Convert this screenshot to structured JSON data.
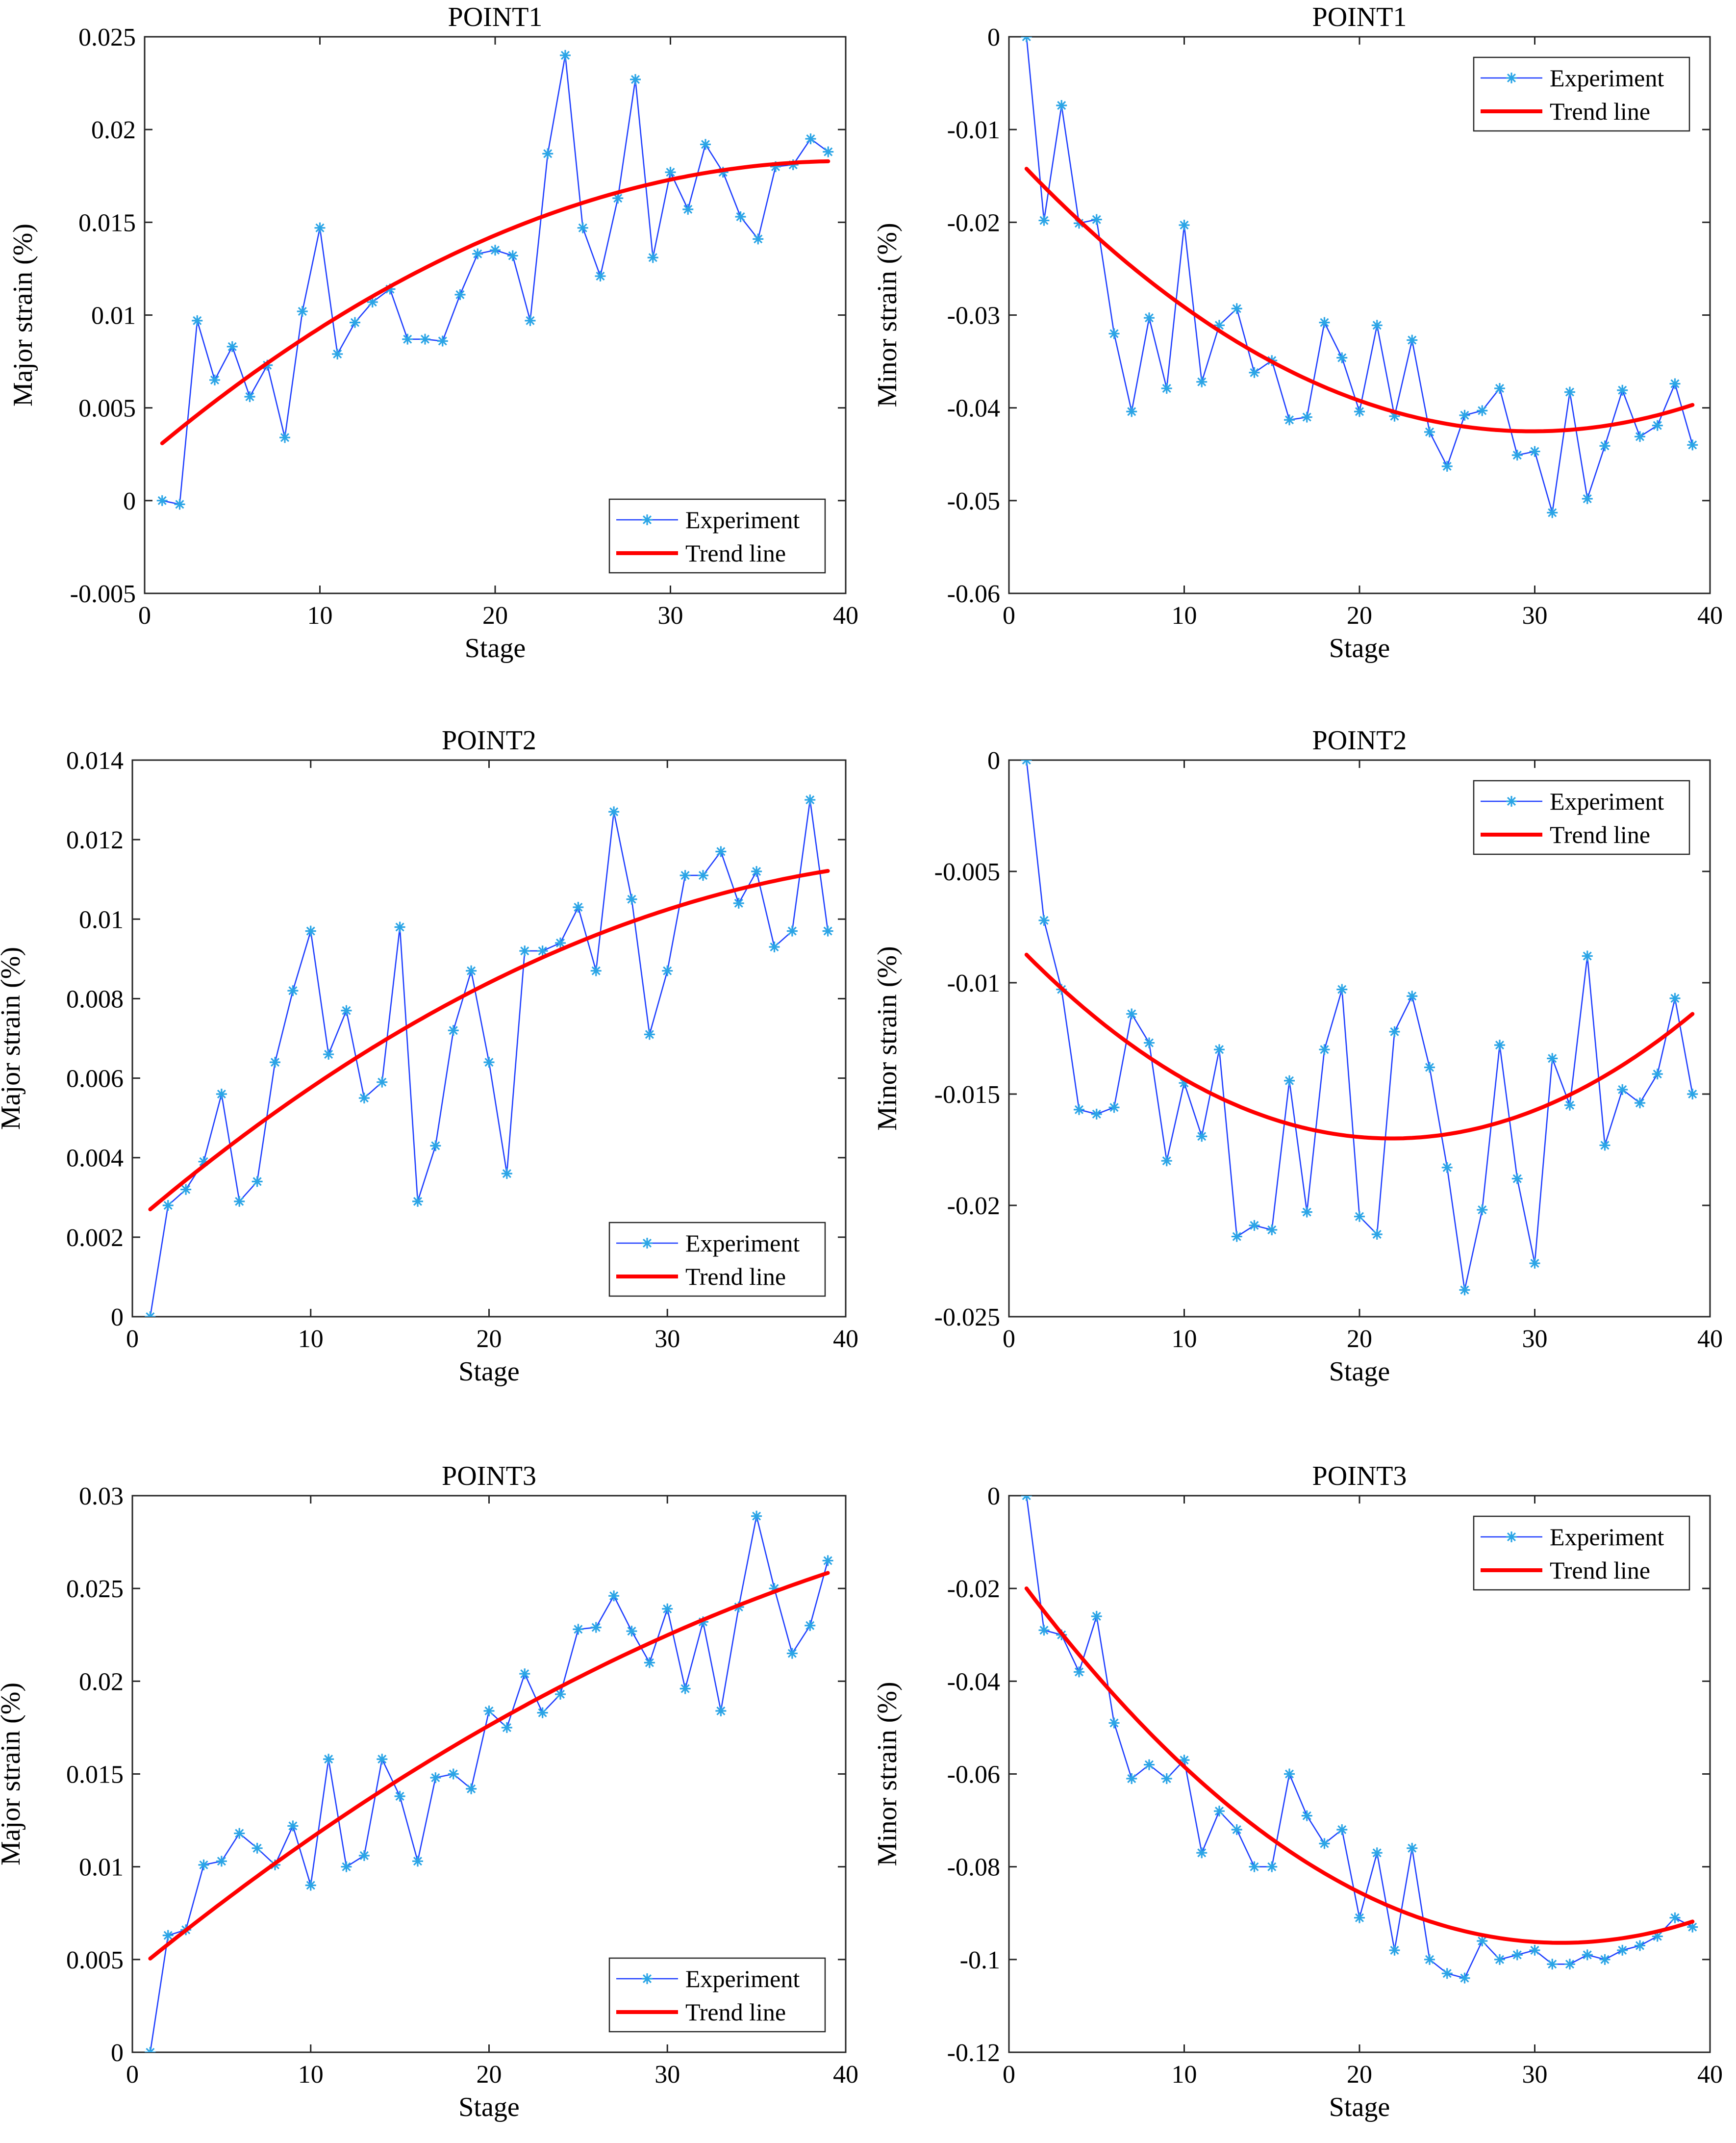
{
  "chart_data": [
    {
      "type": "line",
      "title": "POINT1",
      "xlabel": "Stage",
      "ylabel": "Major strain (%)",
      "xlim": [
        0,
        40
      ],
      "ylim": [
        -0.005,
        0.025
      ],
      "xticks": [
        0,
        10,
        20,
        30,
        40
      ],
      "xtick_labels": [
        "0",
        "10",
        "20",
        "30",
        "40"
      ],
      "yticks": [
        -0.005,
        0,
        0.005,
        0.01,
        0.015,
        0.02,
        0.025
      ],
      "ytick_labels": [
        "-0.005",
        "0",
        "0.005",
        "0.01",
        "0.015",
        "0.02",
        "0.025"
      ],
      "legend_position": "bottom-right",
      "series": [
        {
          "name": "Experiment",
          "color": "#1f3fff",
          "marker_color": "#2ba5e6",
          "x": [
            1,
            2,
            3,
            4,
            5,
            6,
            7,
            8,
            9,
            10,
            11,
            12,
            13,
            14,
            15,
            16,
            17,
            18,
            19,
            20,
            21,
            22,
            23,
            24,
            25,
            26,
            27,
            28,
            29,
            30,
            31,
            32,
            33,
            34,
            35,
            36,
            37,
            38,
            39
          ],
          "y": [
            0.0,
            -0.0002,
            0.0097,
            0.0065,
            0.0083,
            0.0056,
            0.0073,
            0.0034,
            0.0102,
            0.0147,
            0.0079,
            0.0096,
            0.0107,
            0.0114,
            0.0087,
            0.0087,
            0.0086,
            0.0111,
            0.0133,
            0.0135,
            0.0132,
            0.0097,
            0.0187,
            0.024,
            0.0147,
            0.0121,
            0.0163,
            0.0227,
            0.0131,
            0.0177,
            0.0157,
            0.0192,
            0.0177,
            0.0153,
            0.0141,
            0.018,
            0.0181,
            0.0195,
            0.0188
          ]
        },
        {
          "name": "Trend line",
          "color": "#ff0000",
          "x": [
            1,
            39
          ],
          "fit": [
            -1e-05,
            0.0008,
            0.0023
          ]
        }
      ]
    },
    {
      "type": "line",
      "title": "POINT1",
      "xlabel": "Stage",
      "ylabel": "Minor strain (%)",
      "xlim": [
        0,
        40
      ],
      "ylim": [
        -0.06,
        0
      ],
      "xticks": [
        0,
        10,
        20,
        30,
        40
      ],
      "xtick_labels": [
        "0",
        "10",
        "20",
        "30",
        "40"
      ],
      "yticks": [
        -0.06,
        -0.05,
        -0.04,
        -0.03,
        -0.02,
        -0.01,
        0
      ],
      "ytick_labels": [
        "-0.06",
        "-0.05",
        "-0.04",
        "-0.03",
        "-0.02",
        "-0.01",
        "0"
      ],
      "legend_position": "top-right",
      "series": [
        {
          "name": "Experiment",
          "color": "#1f3fff",
          "marker_color": "#2ba5e6",
          "x": [
            1,
            2,
            3,
            4,
            5,
            6,
            7,
            8,
            9,
            10,
            11,
            12,
            13,
            14,
            15,
            16,
            17,
            18,
            19,
            20,
            21,
            22,
            23,
            24,
            25,
            26,
            27,
            28,
            29,
            30,
            31,
            32,
            33,
            34,
            35,
            36,
            37,
            38,
            39
          ],
          "y": [
            0.0,
            -0.0198,
            -0.0074,
            -0.0201,
            -0.0197,
            -0.032,
            -0.0404,
            -0.0303,
            -0.0379,
            -0.0203,
            -0.0372,
            -0.0311,
            -0.0293,
            -0.0362,
            -0.0349,
            -0.0413,
            -0.041,
            -0.0308,
            -0.0346,
            -0.0404,
            -0.0311,
            -0.0409,
            -0.0327,
            -0.0426,
            -0.0463,
            -0.0408,
            -0.0403,
            -0.0379,
            -0.0451,
            -0.0447,
            -0.0513,
            -0.0383,
            -0.0498,
            -0.0441,
            -0.0381,
            -0.0431,
            -0.0419,
            -0.0374,
            -0.044
          ]
        },
        {
          "name": "Trend line",
          "color": "#ff0000",
          "x": [
            1,
            39
          ],
          "fit": [
            3.4e-05,
            -0.00203,
            -0.01223
          ]
        }
      ]
    },
    {
      "type": "line",
      "title": "POINT2",
      "xlabel": "Stage",
      "ylabel": "Major strain (%)",
      "xlim": [
        0,
        40
      ],
      "ylim": [
        0,
        0.014
      ],
      "xticks": [
        0,
        10,
        20,
        30,
        40
      ],
      "xtick_labels": [
        "0",
        "10",
        "20",
        "30",
        "40"
      ],
      "yticks": [
        0,
        0.002,
        0.004,
        0.006,
        0.008,
        0.01,
        0.012,
        0.014
      ],
      "ytick_labels": [
        "0",
        "0.002",
        "0.004",
        "0.006",
        "0.008",
        "0.01",
        "0.012",
        "0.014"
      ],
      "legend_position": "bottom-right",
      "series": [
        {
          "name": "Experiment",
          "color": "#1f3fff",
          "marker_color": "#2ba5e6",
          "x": [
            1,
            2,
            3,
            4,
            5,
            6,
            7,
            8,
            9,
            10,
            11,
            12,
            13,
            14,
            15,
            16,
            17,
            18,
            19,
            20,
            21,
            22,
            23,
            24,
            25,
            26,
            27,
            28,
            29,
            30,
            31,
            32,
            33,
            34,
            35,
            36,
            37,
            38,
            39
          ],
          "y": [
            0.0,
            0.0028,
            0.0032,
            0.0039,
            0.0056,
            0.0029,
            0.0034,
            0.0064,
            0.0082,
            0.0097,
            0.0066,
            0.0077,
            0.0055,
            0.0059,
            0.0098,
            0.0029,
            0.0043,
            0.0072,
            0.0087,
            0.0064,
            0.0036,
            0.0092,
            0.0092,
            0.0094,
            0.0103,
            0.0087,
            0.0127,
            0.0105,
            0.0071,
            0.0087,
            0.0111,
            0.0111,
            0.0117,
            0.0104,
            0.0112,
            0.0093,
            0.0097,
            0.013,
            0.0097
          ]
        },
        {
          "name": "Trend line",
          "color": "#ff0000",
          "x": [
            1,
            39
          ],
          "fit": [
            -4e-06,
            0.000384,
            0.00232
          ]
        }
      ]
    },
    {
      "type": "line",
      "title": "POINT2",
      "xlabel": "Stage",
      "ylabel": "Minor strain (%)",
      "xlim": [
        0,
        40
      ],
      "ylim": [
        -0.025,
        0
      ],
      "xticks": [
        0,
        10,
        20,
        30,
        40
      ],
      "xtick_labels": [
        "0",
        "10",
        "20",
        "30",
        "40"
      ],
      "yticks": [
        -0.025,
        -0.02,
        -0.015,
        -0.01,
        -0.005,
        0
      ],
      "ytick_labels": [
        "-0.025",
        "-0.02",
        "-0.015",
        "-0.01",
        "-0.005",
        "0"
      ],
      "legend_position": "top-right",
      "series": [
        {
          "name": "Experiment",
          "color": "#1f3fff",
          "marker_color": "#2ba5e6",
          "x": [
            1,
            2,
            3,
            4,
            5,
            6,
            7,
            8,
            9,
            10,
            11,
            12,
            13,
            14,
            15,
            16,
            17,
            18,
            19,
            20,
            21,
            22,
            23,
            24,
            25,
            26,
            27,
            28,
            29,
            30,
            31,
            32,
            33,
            34,
            35,
            36,
            37,
            38,
            39
          ],
          "y": [
            0.0,
            -0.0072,
            -0.0103,
            -0.0157,
            -0.0159,
            -0.0156,
            -0.0114,
            -0.0127,
            -0.018,
            -0.0145,
            -0.0169,
            -0.013,
            -0.0214,
            -0.0209,
            -0.0211,
            -0.0144,
            -0.0203,
            -0.013,
            -0.0103,
            -0.0205,
            -0.0213,
            -0.0122,
            -0.0106,
            -0.0138,
            -0.0183,
            -0.0238,
            -0.0202,
            -0.0128,
            -0.0188,
            -0.0226,
            -0.0134,
            -0.0155,
            -0.0088,
            -0.0173,
            -0.0148,
            -0.0154,
            -0.0141,
            -0.0107,
            -0.015
          ]
        },
        {
          "name": "Trend line",
          "color": "#ff0000",
          "x": [
            1,
            39
          ],
          "fit": [
            1.9e-05,
            -0.00083,
            -0.00793
          ]
        }
      ]
    },
    {
      "type": "line",
      "title": "POINT3",
      "xlabel": "Stage",
      "ylabel": "Major strain (%)",
      "xlim": [
        0,
        40
      ],
      "ylim": [
        0,
        0.03
      ],
      "xticks": [
        0,
        10,
        20,
        30,
        40
      ],
      "xtick_labels": [
        "0",
        "10",
        "20",
        "30",
        "40"
      ],
      "yticks": [
        0,
        0.005,
        0.01,
        0.015,
        0.02,
        0.025,
        0.03
      ],
      "ytick_labels": [
        "0",
        "0.005",
        "0.01",
        "0.015",
        "0.02",
        "0.025",
        "0.03"
      ],
      "legend_position": "bottom-right",
      "series": [
        {
          "name": "Experiment",
          "color": "#1f3fff",
          "marker_color": "#2ba5e6",
          "x": [
            1,
            2,
            3,
            4,
            5,
            6,
            7,
            8,
            9,
            10,
            11,
            12,
            13,
            14,
            15,
            16,
            17,
            18,
            19,
            20,
            21,
            22,
            23,
            24,
            25,
            26,
            27,
            28,
            29,
            30,
            31,
            32,
            33,
            34,
            35,
            36,
            37,
            38,
            39
          ],
          "y": [
            0.0,
            0.0063,
            0.0066,
            0.0101,
            0.0103,
            0.0118,
            0.011,
            0.0101,
            0.0122,
            0.009,
            0.0158,
            0.01,
            0.0106,
            0.0158,
            0.0138,
            0.0103,
            0.0148,
            0.015,
            0.0142,
            0.0184,
            0.0175,
            0.0204,
            0.0183,
            0.0193,
            0.0228,
            0.0229,
            0.0246,
            0.0227,
            0.021,
            0.0239,
            0.0196,
            0.0232,
            0.0184,
            0.024,
            0.0289,
            0.025,
            0.0215,
            0.023,
            0.0265
          ]
        },
        {
          "name": "Trend line",
          "color": "#ff0000",
          "x": [
            1,
            39
          ],
          "fit": [
            -6e-06,
            0.000787,
            0.00427
          ]
        }
      ]
    },
    {
      "type": "line",
      "title": "POINT3",
      "xlabel": "Stage",
      "ylabel": "Minor strain (%)",
      "xlim": [
        0,
        40
      ],
      "ylim": [
        -0.12,
        0
      ],
      "xticks": [
        0,
        10,
        20,
        30,
        40
      ],
      "xtick_labels": [
        "0",
        "10",
        "20",
        "30",
        "40"
      ],
      "yticks": [
        -0.12,
        -0.1,
        -0.08,
        -0.06,
        -0.04,
        -0.02,
        0
      ],
      "ytick_labels": [
        "-0.12",
        "-0.1",
        "-0.08",
        "-0.06",
        "-0.04",
        "-0.02",
        "0"
      ],
      "legend_position": "top-right",
      "series": [
        {
          "name": "Experiment",
          "color": "#1f3fff",
          "marker_color": "#2ba5e6",
          "x": [
            1,
            2,
            3,
            4,
            5,
            6,
            7,
            8,
            9,
            10,
            11,
            12,
            13,
            14,
            15,
            16,
            17,
            18,
            19,
            20,
            21,
            22,
            23,
            24,
            25,
            26,
            27,
            28,
            29,
            30,
            31,
            32,
            33,
            34,
            35,
            36,
            37,
            38,
            39
          ],
          "y": [
            0.0,
            -0.029,
            -0.03,
            -0.038,
            -0.026,
            -0.049,
            -0.061,
            -0.058,
            -0.061,
            -0.057,
            -0.077,
            -0.068,
            -0.072,
            -0.08,
            -0.08,
            -0.06,
            -0.069,
            -0.075,
            -0.072,
            -0.091,
            -0.077,
            -0.098,
            -0.076,
            -0.1,
            -0.103,
            -0.104,
            -0.096,
            -0.1,
            -0.099,
            -0.098,
            -0.101,
            -0.101,
            -0.099,
            -0.1,
            -0.098,
            -0.097,
            -0.095,
            -0.091,
            -0.093
          ]
        },
        {
          "name": "Trend line",
          "color": "#ff0000",
          "x": [
            1,
            39
          ],
          "fit": [
            8.2e-05,
            -0.00517,
            -0.01491
          ]
        }
      ]
    }
  ]
}
